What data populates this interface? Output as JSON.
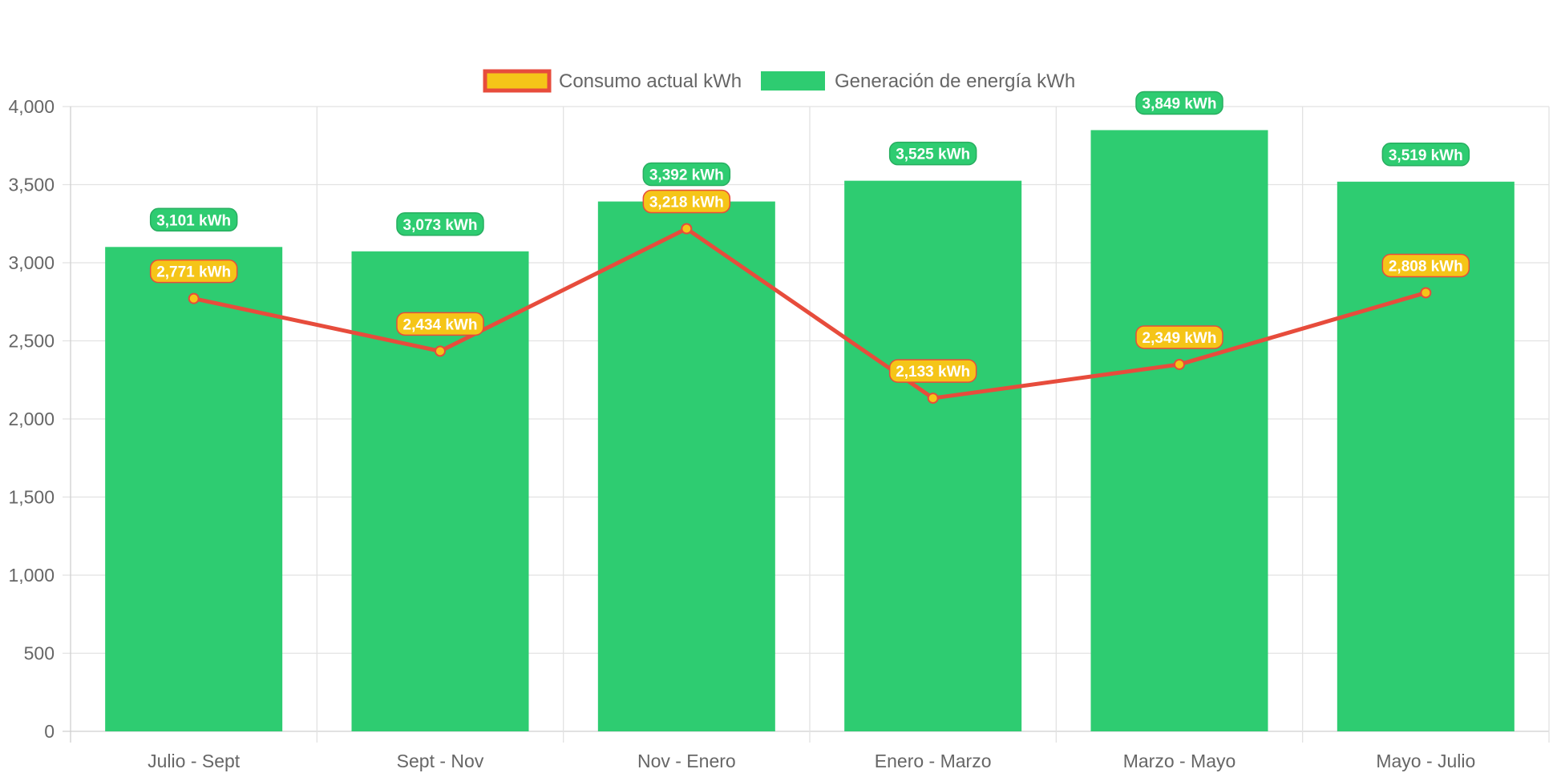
{
  "chart_data": {
    "type": "bar",
    "categories": [
      "Julio - Sept",
      "Sept - Nov",
      "Nov - Enero",
      "Enero - Marzo",
      "Marzo - Mayo",
      "Mayo - Julio"
    ],
    "series": [
      {
        "name": "Consumo actual kWh",
        "type": "line",
        "values": [
          2771,
          2434,
          3218,
          2133,
          2349,
          2808
        ],
        "labels": [
          "2,771 kWh",
          "2,434 kWh",
          "3,218 kWh",
          "2,133 kWh",
          "2,349 kWh",
          "2,808 kWh"
        ],
        "color": "#e74c3c",
        "fill_color": "#f5c518"
      },
      {
        "name": "Generación de energía kWh",
        "type": "bar",
        "values": [
          3101,
          3073,
          3392,
          3525,
          3849,
          3519
        ],
        "labels": [
          "3,101 kWh",
          "3,073 kWh",
          "3,392 kWh",
          "3,525 kWh",
          "3,849 kWh",
          "3,519 kWh"
        ],
        "color": "#2ecc71",
        "border_color": "#27ae60"
      }
    ],
    "ylim": [
      0,
      4000
    ],
    "yticks": [
      "0",
      "500",
      "1,000",
      "1,500",
      "2,000",
      "2,500",
      "3,000",
      "3,500",
      "4,000"
    ],
    "grid": true,
    "legend_position": "top-center",
    "title": "",
    "xlabel": "",
    "ylabel": ""
  }
}
